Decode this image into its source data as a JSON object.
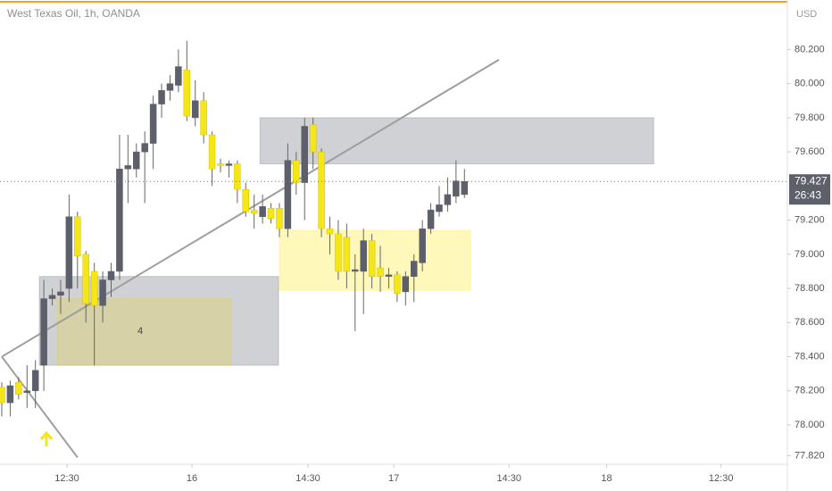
{
  "chart_data": {
    "type": "candlestick",
    "title": "West Texas Oil, 1h, OANDA",
    "currency": "USD",
    "up_color": "#5d606b",
    "down_color": "#f5e51b",
    "x": [
      0,
      1,
      2,
      3,
      4,
      5,
      6,
      7,
      8,
      9,
      10,
      11,
      12,
      13,
      14,
      15,
      16,
      17,
      18,
      19,
      20,
      21,
      22,
      23,
      24,
      25,
      26,
      27,
      28,
      29,
      30,
      31,
      32,
      33,
      34,
      35,
      36,
      37,
      38,
      39,
      40,
      41,
      42,
      43,
      44,
      45,
      46,
      47,
      48,
      49,
      50,
      51,
      52,
      53,
      54,
      55
    ],
    "open": [
      78.22,
      78.13,
      78.25,
      78.19,
      78.2,
      78.35,
      78.74,
      78.76,
      78.8,
      79.22,
      79.0,
      78.9,
      78.7,
      78.85,
      78.9,
      79.5,
      79.5,
      79.6,
      79.65,
      79.88,
      79.96,
      79.99,
      80.08,
      79.8,
      79.9,
      79.7,
      79.53,
      79.52,
      79.53,
      79.38,
      79.26,
      79.22,
      79.27,
      79.27,
      79.15,
      79.55,
      79.42,
      79.76,
      79.6,
      79.15,
      79.12,
      79.1,
      78.9,
      78.9,
      79.08,
      78.92,
      78.87,
      78.88,
      78.78,
      78.87,
      78.95,
      79.15,
      79.25,
      79.29,
      79.34,
      79.35
    ],
    "high": [
      78.25,
      78.26,
      78.28,
      78.35,
      78.38,
      78.85,
      78.8,
      78.85,
      79.35,
      79.25,
      79.02,
      78.95,
      78.9,
      78.95,
      79.7,
      79.7,
      79.65,
      79.72,
      79.93,
      80.0,
      80.05,
      80.2,
      80.25,
      80.02,
      79.95,
      79.72,
      79.56,
      79.55,
      79.55,
      79.42,
      79.35,
      79.35,
      79.3,
      79.3,
      79.65,
      79.6,
      79.8,
      79.8,
      79.62,
      79.22,
      79.2,
      79.18,
      79.0,
      79.15,
      79.12,
      79.05,
      78.92,
      78.9,
      78.9,
      79.0,
      79.2,
      79.3,
      79.4,
      79.45,
      79.55,
      79.5
    ],
    "low": [
      78.05,
      78.05,
      78.15,
      78.1,
      78.1,
      78.2,
      78.7,
      78.65,
      78.72,
      78.8,
      78.6,
      78.35,
      78.6,
      78.75,
      78.85,
      79.3,
      79.45,
      79.3,
      79.5,
      79.8,
      79.9,
      79.95,
      79.78,
      79.75,
      79.65,
      79.4,
      79.48,
      79.45,
      79.3,
      79.22,
      79.15,
      79.18,
      79.18,
      79.1,
      79.1,
      79.35,
      79.2,
      79.5,
      79.1,
      79.0,
      78.85,
      78.8,
      78.55,
      78.65,
      78.8,
      78.78,
      78.8,
      78.72,
      78.7,
      78.72,
      78.9,
      79.12,
      79.22,
      79.25,
      79.3,
      79.33
    ],
    "close": [
      78.13,
      78.23,
      78.18,
      78.2,
      78.32,
      78.74,
      78.76,
      78.78,
      79.22,
      78.99,
      78.71,
      78.7,
      78.85,
      78.9,
      79.5,
      79.52,
      79.6,
      79.65,
      79.88,
      79.96,
      80.0,
      80.1,
      79.81,
      79.9,
      79.7,
      79.5,
      79.52,
      79.53,
      79.38,
      79.25,
      79.24,
      79.28,
      79.21,
      79.15,
      79.55,
      79.42,
      79.75,
      79.6,
      79.15,
      79.12,
      78.9,
      78.9,
      78.91,
      79.08,
      78.87,
      78.87,
      78.88,
      78.77,
      78.87,
      78.96,
      79.15,
      79.26,
      79.29,
      79.35,
      79.43,
      79.427
    ],
    "last_price": 79.427,
    "countdown": "26:43",
    "xlim": [
      0,
      93.6
    ],
    "xticks": [
      {
        "value": 7.75,
        "label": "12:30"
      },
      {
        "value": 22.6,
        "label": "16"
      },
      {
        "value": 36.4,
        "label": "14:30"
      },
      {
        "value": 46.6,
        "label": "17"
      },
      {
        "value": 60.3,
        "label": "14:30"
      },
      {
        "value": 71.9,
        "label": "18"
      },
      {
        "value": 85.5,
        "label": "12:30"
      }
    ],
    "ylim": [
      77.77,
      80.49
    ],
    "yticks": [
      {
        "value": 77.82,
        "label": "77.820"
      },
      {
        "value": 78.0,
        "label": "78.000"
      },
      {
        "value": 78.2,
        "label": "78.200"
      },
      {
        "value": 78.4,
        "label": "78.400"
      },
      {
        "value": 78.6,
        "label": "78.600"
      },
      {
        "value": 78.8,
        "label": "78.800"
      },
      {
        "value": 79.0,
        "label": "79.000"
      },
      {
        "value": 79.2,
        "label": "79.200"
      },
      {
        "value": 79.6,
        "label": "79.600"
      },
      {
        "value": 79.8,
        "label": "79.800"
      },
      {
        "value": 80.0,
        "label": "80.000"
      },
      {
        "value": 80.2,
        "label": "80.200"
      }
    ],
    "zones": [
      {
        "x": [
          4.46,
          32.9
        ],
        "y": [
          78.35,
          78.87
        ],
        "color": "rgba(120,123,134,0.35)"
      },
      {
        "x": [
          6.6,
          27.3
        ],
        "y": [
          78.35,
          78.74
        ],
        "color": "rgba(225,210,80,0.35)"
      },
      {
        "x": [
          30.7,
          77.5
        ],
        "y": [
          79.53,
          79.8
        ],
        "color": "rgba(120,123,134,0.35)"
      },
      {
        "x": [
          33.0,
          55.7
        ],
        "y": [
          78.79,
          79.14
        ],
        "color": "rgba(255,235,59,0.35)"
      }
    ],
    "lines": [
      {
        "x": [
          0,
          59.1
        ],
        "y": [
          78.4,
          80.14
        ],
        "color": "#9e9e9e"
      },
      {
        "x": [
          0,
          9.0
        ],
        "y": [
          78.4,
          77.81
        ],
        "color": "#9e9e9e"
      }
    ],
    "annotations": [
      {
        "text": "4",
        "x": 16.45,
        "y": 78.55
      }
    ]
  }
}
